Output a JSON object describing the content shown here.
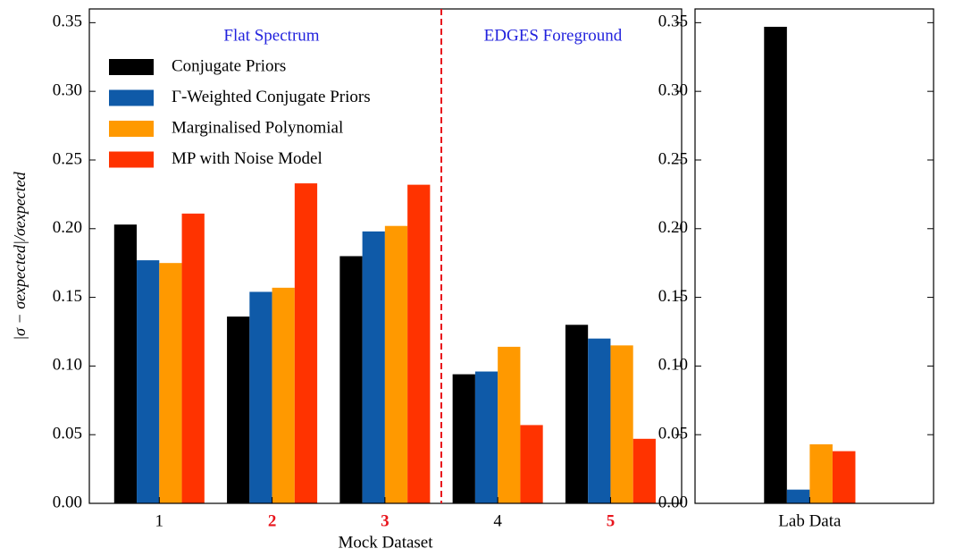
{
  "chart_data": [
    {
      "type": "bar",
      "x_label": "Mock Dataset",
      "y_label": "|σ − σexpected|/σexpected",
      "categories": [
        "1",
        "2",
        "3",
        "4",
        "5"
      ],
      "category_colors": [
        "#000000",
        "#e8141c",
        "#e8141c",
        "#000000",
        "#e8141c"
      ],
      "series": [
        {
          "name": "Conjugate Priors",
          "color": "#000000",
          "values": [
            0.203,
            0.136,
            0.18,
            0.094,
            0.13
          ]
        },
        {
          "name": "Γ-Weighted Conjugate Priors",
          "color": "#0f5aa8",
          "values": [
            0.177,
            0.154,
            0.198,
            0.096,
            0.12
          ]
        },
        {
          "name": "Marginalised Polynomial",
          "color": "#ff9900",
          "values": [
            0.175,
            0.157,
            0.202,
            0.114,
            0.115
          ]
        },
        {
          "name": "MP with Noise Model",
          "color": "#ff3300",
          "values": [
            0.211,
            0.233,
            0.232,
            0.057,
            0.047
          ]
        }
      ],
      "annotations": [
        {
          "text": "Flat Spectrum",
          "color": "#2222dd"
        },
        {
          "text": "EDGES Foreground",
          "color": "#2222dd"
        }
      ],
      "divider": {
        "x": 3.5,
        "color": "#e8141c"
      },
      "ylim": [
        0,
        0.36
      ],
      "yticks": [
        {
          "value": 0,
          "label": "0.00"
        },
        {
          "value": 0.05,
          "label": "0.05"
        },
        {
          "value": 0.1,
          "label": "0.10"
        },
        {
          "value": 0.15,
          "label": "0.15"
        },
        {
          "value": 0.2,
          "label": "0.20"
        },
        {
          "value": 0.25,
          "label": "0.25"
        },
        {
          "value": 0.3,
          "label": "0.30"
        },
        {
          "value": 0.35,
          "label": "0.35"
        }
      ],
      "legend": "upper left"
    },
    {
      "type": "bar",
      "categories": [
        "Lab Data"
      ],
      "series": [
        {
          "color": "#000000",
          "values": [
            0.347
          ]
        },
        {
          "color": "#0f5aa8",
          "values": [
            0.01
          ]
        },
        {
          "color": "#ff9900",
          "values": [
            0.043
          ]
        },
        {
          "color": "#ff3300",
          "values": [
            0.038
          ]
        }
      ],
      "ylim": [
        0,
        0.36
      ],
      "yticks": [
        {
          "value": 0,
          "label": "0.00"
        },
        {
          "value": 0.05,
          "label": "0.05"
        },
        {
          "value": 0.1,
          "label": "0.10"
        },
        {
          "value": 0.15,
          "label": "0.15"
        },
        {
          "value": 0.2,
          "label": "0.20"
        },
        {
          "value": 0.25,
          "label": "0.25"
        },
        {
          "value": 0.3,
          "label": "0.30"
        },
        {
          "value": 0.35,
          "label": "0.35"
        }
      ]
    }
  ]
}
